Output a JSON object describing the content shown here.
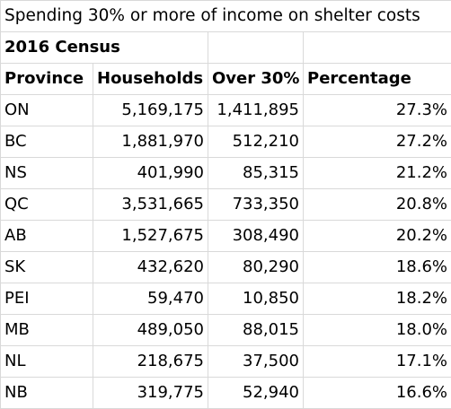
{
  "sheet": {
    "title": "Spending 30% or more of income on shelter costs",
    "subtitle": "2016 Census",
    "columns": [
      "Province",
      "Households",
      "Over 30%",
      "Percentage"
    ],
    "rows": [
      [
        "ON",
        "5,169,175",
        "1,411,895",
        "27.3%"
      ],
      [
        "BC",
        "1,881,970",
        "512,210",
        "27.2%"
      ],
      [
        "NS",
        "401,990",
        "85,315",
        "21.2%"
      ],
      [
        "QC",
        "3,531,665",
        "733,350",
        "20.8%"
      ],
      [
        "AB",
        "1,527,675",
        "308,490",
        "20.2%"
      ],
      [
        "SK",
        "432,620",
        "80,290",
        "18.6%"
      ],
      [
        "PEI",
        "59,470",
        "10,850",
        "18.2%"
      ],
      [
        "MB",
        "489,050",
        "88,015",
        "18.0%"
      ],
      [
        "NL",
        "218,675",
        "37,500",
        "17.1%"
      ],
      [
        "NB",
        "319,775",
        "52,940",
        "16.6%"
      ]
    ]
  }
}
